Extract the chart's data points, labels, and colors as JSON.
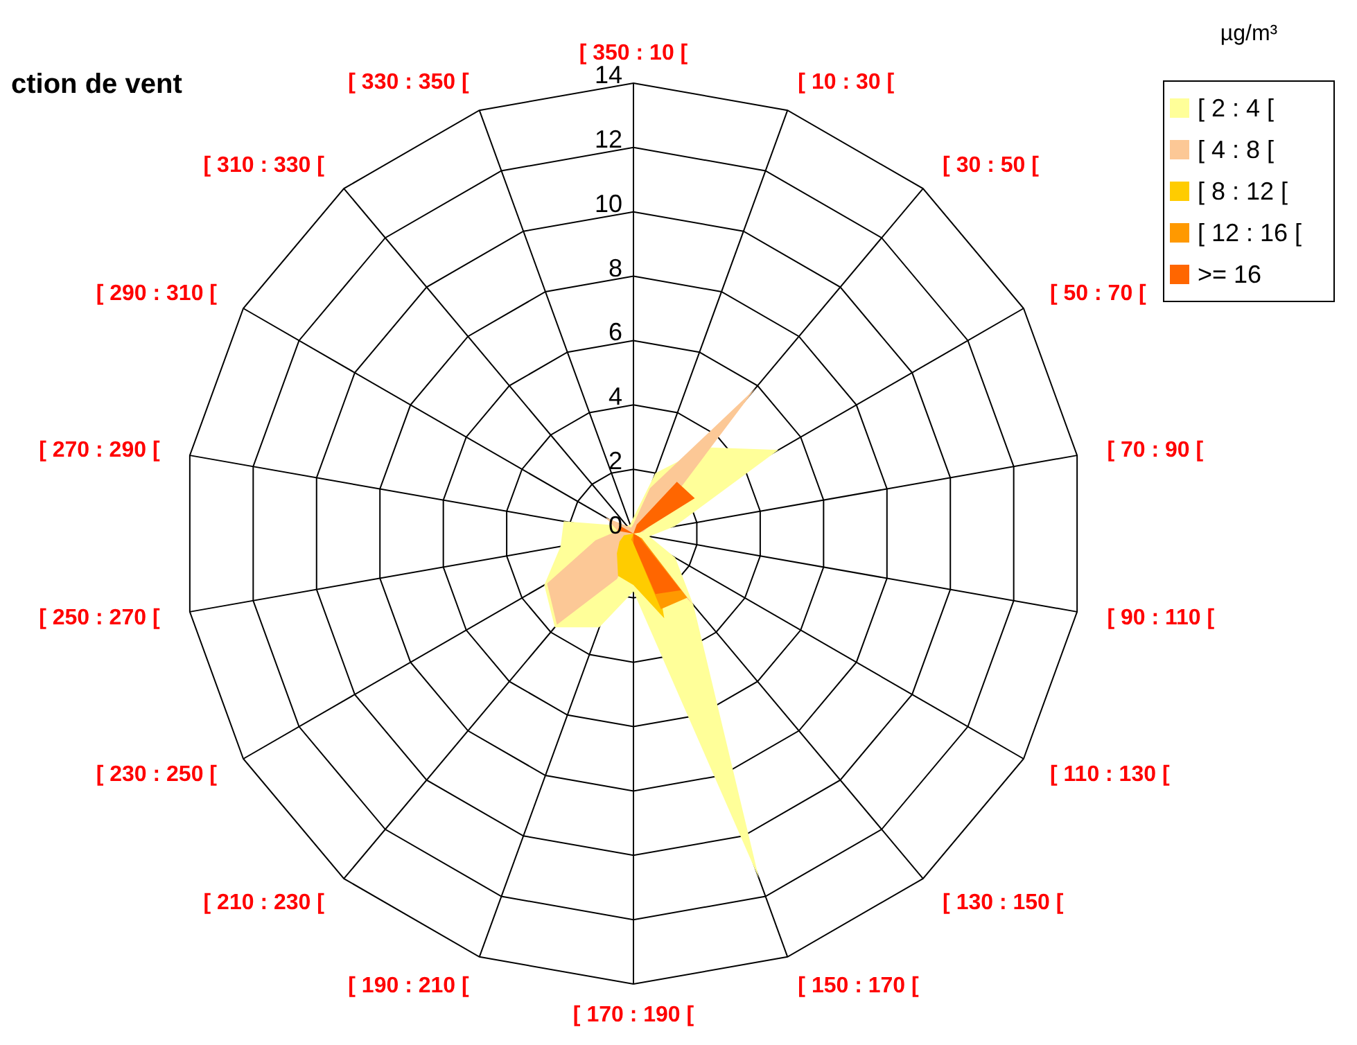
{
  "chart_data": {
    "type": "radar",
    "title": "ction de vent",
    "legend_title": "µg/m³",
    "categories": [
      "[ 350 : 10 [",
      "[ 10 : 30 [",
      "[ 30 : 50 [",
      "[ 50 : 70 [",
      "[ 70 : 90 [",
      "[ 90 : 110 [",
      "[ 110 : 130 [",
      "[ 130 : 150 [",
      "[ 150 : 170 [",
      "[ 170 : 190 [",
      "[ 190 : 210 [",
      "[ 210 : 230 [",
      "[ 230 : 250 [",
      "[ 250 : 270 [",
      "[ 270 : 290 [",
      "[ 290 : 310 [",
      "[ 310 : 330 [",
      "[ 330 : 350 ["
    ],
    "series": [
      {
        "name": "[ 2 : 4 [",
        "color": "#ffff99",
        "values": [
          0.5,
          2,
          3.5,
          5.2,
          1.3,
          0.5,
          1.5,
          2.9,
          11.4,
          1.8,
          3.1,
          3.8,
          3.2,
          2.3,
          2.2,
          0.5,
          0.3,
          0.3
        ]
      },
      {
        "name": "[ 4 : 8 [",
        "color": "#fcc896",
        "values": [
          0.3,
          1.5,
          5.9,
          0.8,
          0.3,
          0,
          0.3,
          2.9,
          0.5,
          0.5,
          1.5,
          3.7,
          3.1,
          1.2,
          0.5,
          1,
          0.3,
          0.2
        ]
      },
      {
        "name": "[ 8 : 12 [",
        "color": "#ffcc00",
        "values": [
          0,
          0,
          0.3,
          0,
          0,
          0,
          0.3,
          1,
          2.8,
          1.6,
          1.4,
          0.8,
          0.5,
          0.3,
          0,
          0,
          0,
          0
        ]
      },
      {
        "name": "[ 12 : 16 [",
        "color": "#ff9900",
        "values": [
          0,
          0,
          0.2,
          0,
          0,
          0,
          0.3,
          2.6,
          2.5,
          0.3,
          0.2,
          0,
          0,
          0,
          0,
          0,
          0,
          0
        ]
      },
      {
        "name": ">= 16",
        "color": "#ff6600",
        "values": [
          0,
          0.3,
          2.1,
          2.2,
          0.2,
          0,
          0.2,
          2.3,
          2,
          0.3,
          0,
          0,
          0,
          0,
          0.5,
          0.5,
          0,
          0
        ]
      }
    ],
    "ylim": [
      0,
      14
    ],
    "yticks": [
      0,
      2,
      4,
      6,
      8,
      10,
      12,
      14
    ],
    "grid": true,
    "legend": "top right"
  }
}
